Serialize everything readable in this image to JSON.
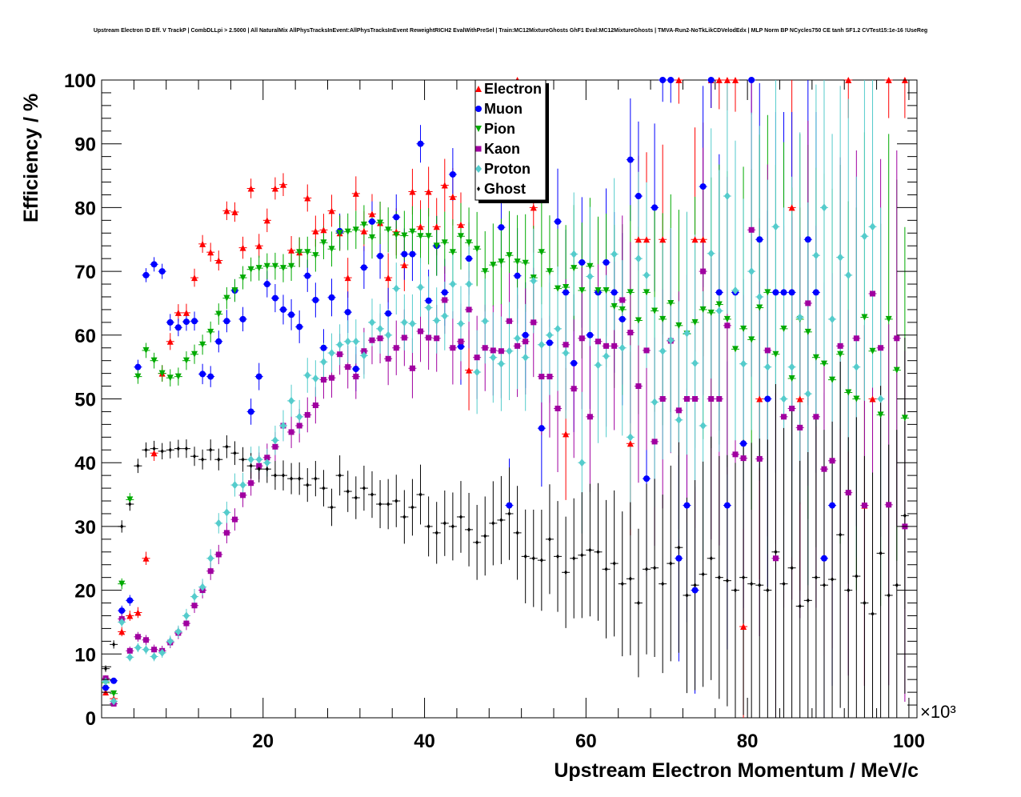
{
  "chart_data": {
    "type": "scatter",
    "title": "Upstream Electron ID Eff. V TrackP | CombDLLpi > 2.5000 | All NaturalMix AllPhysTracksInEvent:AllPhysTracksInEvent ReweightRICH2 EvalWithPreSel | Train:MC12MixtureGhosts GhF1 Eval:MC12MixtureGhosts | TMVA-Run2-NoTkLikCDVelodEdx | MLP Norm BP NCycles750 CE tanh SF1.2 CVTest15:1e-16 !UseReg",
    "xlabel": "Upstream Electron Momentum / MeV/c",
    "ylabel": "Efficiency / %",
    "x_multiplier": "×10^3",
    "xlim": [
      0,
      101
    ],
    "ylim": [
      0,
      100
    ],
    "x_ticks": [
      "20",
      "40",
      "60",
      "80",
      "100"
    ],
    "y_ticks": [
      "0",
      "10",
      "20",
      "30",
      "40",
      "50",
      "60",
      "70",
      "80",
      "90",
      "100"
    ],
    "bin_width": 1,
    "legend_placement": "top-center",
    "series": [
      {
        "name": "Electron",
        "color": "#ff0000",
        "marker": "triangle-up",
        "values": [
          4,
          3,
          13.5,
          16,
          16.5,
          25,
          41.5,
          54,
          59,
          63.5,
          63.5,
          69,
          74.3,
          73,
          71.7,
          79.5,
          79.3,
          73.7,
          83,
          74,
          78,
          83,
          83.6,
          73.3,
          73,
          81.5,
          76.3,
          76.5,
          79.5,
          76,
          69,
          82.2,
          76.3,
          79,
          77.6,
          69,
          76.2,
          71,
          82.5,
          77,
          82.5,
          77,
          83.5,
          81.7,
          77.3,
          54.5,
          null,
          null,
          null,
          null,
          null,
          100,
          null,
          80,
          null,
          null,
          null,
          44.5,
          null,
          null,
          null,
          null,
          null,
          null,
          null,
          43,
          75,
          75,
          null,
          75,
          null,
          100,
          null,
          75,
          75,
          100,
          100,
          100,
          100,
          14.3,
          null,
          50,
          null,
          null,
          null,
          80,
          50,
          null,
          null,
          null,
          null,
          null,
          100,
          null,
          33.3,
          50,
          null,
          100,
          null,
          100
        ]
      },
      {
        "name": "Muon",
        "color": "#0000ff",
        "marker": "circle",
        "values": [
          4.7,
          5.8,
          16.8,
          18.4,
          55,
          69.4,
          71.1,
          70,
          62,
          61.2,
          62.1,
          62.2,
          53.9,
          53.5,
          59,
          62.2,
          67,
          62.5,
          48,
          53.5,
          68,
          65.8,
          64,
          63.2,
          61.3,
          69.3,
          65.5,
          58,
          65.9,
          76.3,
          63.6,
          54.7,
          70.6,
          77.8,
          72.4,
          63.4,
          78.5,
          72.7,
          72.7,
          90,
          65.4,
          74,
          66.7,
          85.2,
          58.2,
          72,
          null,
          null,
          null,
          76.9,
          33.3,
          69.3,
          60,
          null,
          45.4,
          58.8,
          77.8,
          66.7,
          55.6,
          71.4,
          60,
          66.7,
          71.4,
          66.7,
          62.5,
          87.5,
          81.8,
          37.5,
          80,
          100,
          100,
          25,
          33.3,
          20,
          83.3,
          100,
          66.7,
          33.3,
          66.7,
          43,
          100,
          75,
          50,
          66.7,
          66.7,
          66.7,
          null,
          75,
          66.7,
          25,
          33.3,
          null,
          null,
          null,
          null,
          null,
          null,
          null,
          null,
          null
        ]
      },
      {
        "name": "Pion",
        "color": "#00aa00",
        "marker": "triangle-down",
        "values": [
          5.5,
          3.8,
          21,
          34.2,
          53.5,
          57.6,
          56,
          54,
          53.3,
          53.5,
          56,
          57,
          58.5,
          60.5,
          63.3,
          65.8,
          67,
          69,
          70.3,
          70.5,
          70.8,
          70.8,
          70.5,
          70.8,
          73,
          73,
          72.5,
          74.5,
          73.5,
          76,
          76.2,
          76.5,
          77.3,
          75.3,
          77.6,
          76.5,
          75.7,
          75.6,
          76.2,
          75.5,
          75.5,
          74,
          74.5,
          73,
          75.5,
          74.5,
          73.5,
          70,
          71,
          71.5,
          72.5,
          71.5,
          71.3,
          69,
          73,
          70,
          67.3,
          67.5,
          70.5,
          67,
          70.8,
          67,
          67,
          64.5,
          64,
          66.7,
          62.3,
          66.7,
          63.8,
          62.5,
          65,
          61.5,
          60.2,
          62,
          64,
          63.5,
          64.8,
          62.5,
          57.8,
          61,
          59.3,
          64.3,
          66.7,
          57,
          61,
          53.2,
          62.5,
          60.5,
          56.5,
          55.5,
          53,
          57,
          51,
          50,
          62.8,
          57.5,
          47.5,
          62.5,
          54.5,
          47
        ]
      },
      {
        "name": "Kaon",
        "color": "#a000a0",
        "marker": "square",
        "values": [
          6.2,
          2.2,
          15.5,
          10.5,
          12.7,
          12.2,
          10.7,
          10.5,
          11.8,
          13.3,
          14.8,
          17.6,
          20,
          23,
          25.6,
          29,
          31.1,
          34.9,
          36.8,
          39.5,
          40.8,
          42.5,
          45.8,
          44.8,
          45.8,
          47.5,
          49,
          53,
          53.3,
          57,
          55,
          53.5,
          57.5,
          59.2,
          59.5,
          56.3,
          58,
          59.6,
          54.8,
          60.6,
          59.6,
          59.5,
          65.5,
          58,
          59,
          64,
          56.5,
          58,
          57.6,
          57.5,
          62.2,
          58.3,
          59,
          62,
          53.5,
          53.5,
          48.5,
          58.5,
          51.6,
          59.5,
          47.2,
          59,
          58.3,
          58.3,
          65.5,
          60.4,
          52,
          57.6,
          43.3,
          50,
          59.1,
          48.2,
          50,
          50,
          70,
          50,
          50,
          61.5,
          41.3,
          40.7,
          76.5,
          40.6,
          57.6,
          25,
          47.2,
          48.5,
          45.5,
          65,
          47.2,
          39,
          40.3,
          58.3,
          35.3,
          59.5,
          33.3,
          66.5,
          58,
          33.4,
          59.5,
          30
        ]
      },
      {
        "name": "Proton",
        "color": "#55cccc",
        "marker": "diamond",
        "values": [
          5.7,
          2.6,
          15,
          9.5,
          11,
          10.7,
          9.6,
          10.2,
          12,
          13.5,
          16,
          19,
          20.5,
          25,
          30.5,
          32.2,
          36.5,
          36.5,
          40.5,
          40.5,
          40,
          43.5,
          45.8,
          49.7,
          47.2,
          53.7,
          53.2,
          55.8,
          57.2,
          58.5,
          59,
          59,
          56.8,
          62,
          61,
          60,
          67.3,
          62,
          61.8,
          67.5,
          64.3,
          62.3,
          63,
          68,
          61.8,
          68,
          54.2,
          62.2,
          56.5,
          55.5,
          57.5,
          59.5,
          56.5,
          68.5,
          58.5,
          60,
          61,
          57.2,
          72.7,
          40,
          69.2,
          55.3,
          56.7,
          72.7,
          58,
          44,
          72,
          69.4,
          49.5,
          57.5,
          59.2,
          46.7,
          60.3,
          55.6,
          45.8,
          72.8,
          63.8,
          81.8,
          67,
          55.5,
          70,
          66,
          55,
          77,
          50,
          55,
          62.8,
          50.8,
          72.5,
          80,
          62.5,
          72.2,
          69.4,
          55,
          75.5,
          77,
          50,
          null,
          null,
          null
        ]
      },
      {
        "name": "Ghost",
        "color": "#000000",
        "marker": "small-diamond",
        "values": [
          7.7,
          11.5,
          30,
          33.5,
          39.5,
          42,
          42.2,
          41.8,
          42,
          42.2,
          42.2,
          41,
          40.5,
          42,
          40.5,
          42.5,
          41.5,
          40.5,
          39.5,
          39,
          39,
          38,
          38,
          37.5,
          37.5,
          36.5,
          37.5,
          36,
          33,
          38,
          35.5,
          34.5,
          36,
          35,
          33.5,
          33.5,
          34,
          31.5,
          33,
          35,
          30,
          29,
          30.5,
          30,
          31.5,
          29.5,
          27.5,
          28.5,
          30.5,
          31,
          32,
          29,
          25.3,
          25,
          24.7,
          28,
          25.3,
          22.8,
          25,
          25.5,
          26.3,
          26,
          23.3,
          24.2,
          21,
          21.8,
          18,
          23.3,
          23.5,
          21,
          24.2,
          26.7,
          19.2,
          20.8,
          22.5,
          25,
          22,
          21.5,
          20,
          22,
          21,
          20.8,
          20,
          26,
          21,
          23.5,
          17.5,
          18.4,
          22,
          20.8,
          21.7,
          28.7,
          20,
          22.2,
          18,
          16.3,
          25.8,
          19.2,
          20.8,
          31.7
        ]
      }
    ]
  }
}
